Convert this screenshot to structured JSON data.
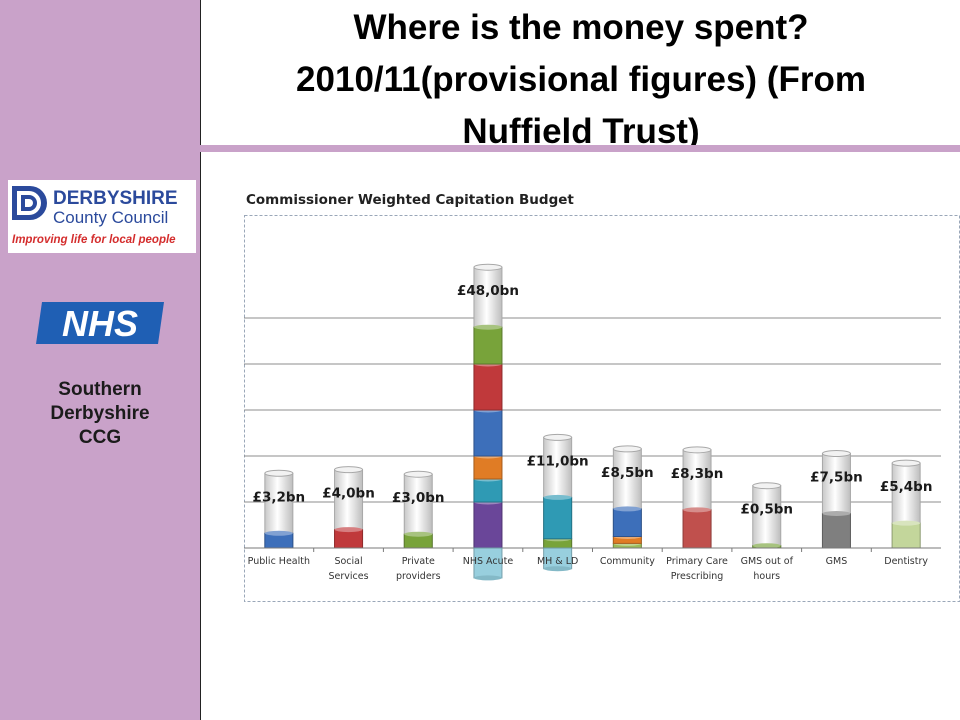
{
  "title_lines": [
    "Where is the money spent?",
    "2010/11(provisional figures) (From",
    "Nuffield Trust)"
  ],
  "sidebar": {
    "dcc_logo": {
      "line1": "DERBYSHIRE",
      "line2": "County Council",
      "tagline": "Improving life for local people",
      "icon": "dcc-emblem-icon"
    },
    "nhs_logo": {
      "text": "NHS"
    },
    "ccg_lines": [
      "Southern",
      "Derbyshire",
      "CCG"
    ]
  },
  "colors": {
    "sidebar": "#c9a2c9",
    "dcc_blue": "#2b4a9c",
    "dcc_red": "#d42d2d",
    "nhs_blue": "#1f5fb4"
  },
  "chart_data": {
    "type": "bar",
    "stacked": true,
    "title": "Commissioner Weighted Capitation Budget",
    "categories": [
      [
        "Public Health"
      ],
      [
        "Social",
        "Services"
      ],
      [
        "Private",
        "providers"
      ],
      [
        "NHS Acute"
      ],
      [
        "MH & LD"
      ],
      [
        "Community"
      ],
      [
        "Primary Care",
        "Prescribing"
      ],
      [
        "GMS out of",
        "hours"
      ],
      [
        "GMS"
      ],
      [
        "Dentistry"
      ]
    ],
    "totals": [
      3.2,
      4.0,
      3.0,
      48.0,
      11.0,
      8.5,
      8.3,
      0.5,
      7.5,
      5.4
    ],
    "labels": [
      "£3,2bn",
      "£4,0bn",
      "£3,0bn",
      "£48,0bn",
      "£11,0bn",
      "£8,5bn",
      "£8,3bn",
      "£0,5bn",
      "£7,5bn",
      "£5,4bn"
    ],
    "segments": [
      [
        {
          "value": 3.2,
          "color": "#3d6fba"
        }
      ],
      [
        {
          "value": 4.0,
          "color": "#c0393b"
        }
      ],
      [
        {
          "value": 3.0,
          "color": "#78a33a"
        }
      ],
      [
        {
          "value": 10,
          "color": "#6a4699"
        },
        {
          "value": 5,
          "color": "#2f9ab4"
        },
        {
          "value": 5,
          "color": "#e07c25"
        },
        {
          "value": 10,
          "color": "#3d6fba"
        },
        {
          "value": 10,
          "color": "#c0393b"
        },
        {
          "value": 8,
          "color": "#78a33a"
        }
      ],
      [
        {
          "value": 2,
          "color": "#78a33a"
        },
        {
          "value": 9,
          "color": "#2f9ab4"
        }
      ],
      [
        {
          "value": 1,
          "color": "#9bbb59"
        },
        {
          "value": 1.5,
          "color": "#e07c25"
        },
        {
          "value": 6,
          "color": "#3d6fba"
        }
      ],
      [
        {
          "value": 8.3,
          "color": "#c0504d"
        }
      ],
      [
        {
          "value": 0.5,
          "color": "#78a33a"
        }
      ],
      [
        {
          "value": 7.5,
          "color": "#7f7f7f"
        }
      ],
      [
        {
          "value": 5.4,
          "color": "#c3d69b"
        }
      ]
    ],
    "below_axis": [
      {
        "category_index": 3,
        "value": 6.5,
        "color": "#93cddd"
      },
      {
        "category_index": 4,
        "value": 4.5,
        "color": "#93cddd"
      }
    ],
    "ylim": [
      0,
      60
    ],
    "grid": true,
    "show_y_ticks": false
  }
}
